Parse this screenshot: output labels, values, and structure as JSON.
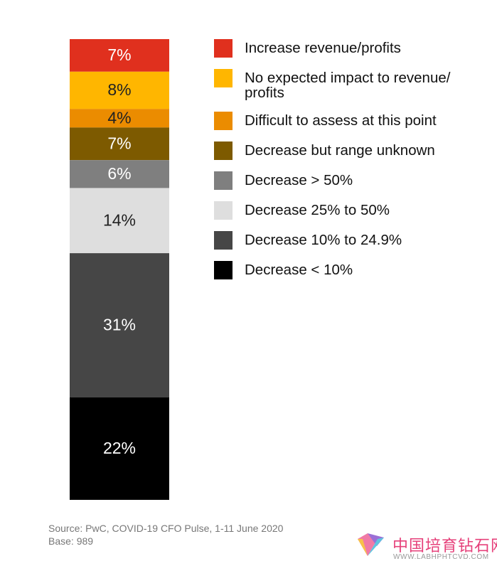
{
  "chart_data": {
    "type": "stacked-bar",
    "series": [
      {
        "name": "Increase revenue/profits",
        "color": "#e0301e",
        "values": [
          7
        ],
        "value_labels": [
          "7%"
        ]
      },
      {
        "name": "No expected impact to revenue/ profits",
        "color": "#ffb600",
        "values": [
          8
        ],
        "value_labels": [
          "8%"
        ]
      },
      {
        "name": "Difficult to assess at this point",
        "color": "#eb8c00",
        "values": [
          4
        ],
        "value_labels": [
          "4%"
        ]
      },
      {
        "name": "Decrease but range unknown",
        "color": "#7d5a00",
        "values": [
          7
        ],
        "value_labels": [
          "7%"
        ]
      },
      {
        "name": "Decrease > 50%",
        "color": "#7f7f7f",
        "values": [
          6
        ],
        "value_labels": [
          "6%"
        ]
      },
      {
        "name": "Decrease 25% to 50%",
        "color": "#dedede",
        "values": [
          14
        ],
        "value_labels": [
          "14%"
        ]
      },
      {
        "name": "Decrease 10% to 24.9%",
        "color": "#464646",
        "values": [
          31
        ],
        "value_labels": [
          "31%"
        ]
      },
      {
        "name": "Decrease < 10%",
        "color": "#000000",
        "values": [
          22
        ],
        "value_labels": [
          "22%"
        ]
      }
    ],
    "source": "Source: PwC, COVID-19 CFO Pulse, 1-11 June 2020",
    "base": "Base: 989"
  },
  "watermark": {
    "title": "中国培育钻石网",
    "url": "WWW.LABHPHTCVD.COM"
  }
}
